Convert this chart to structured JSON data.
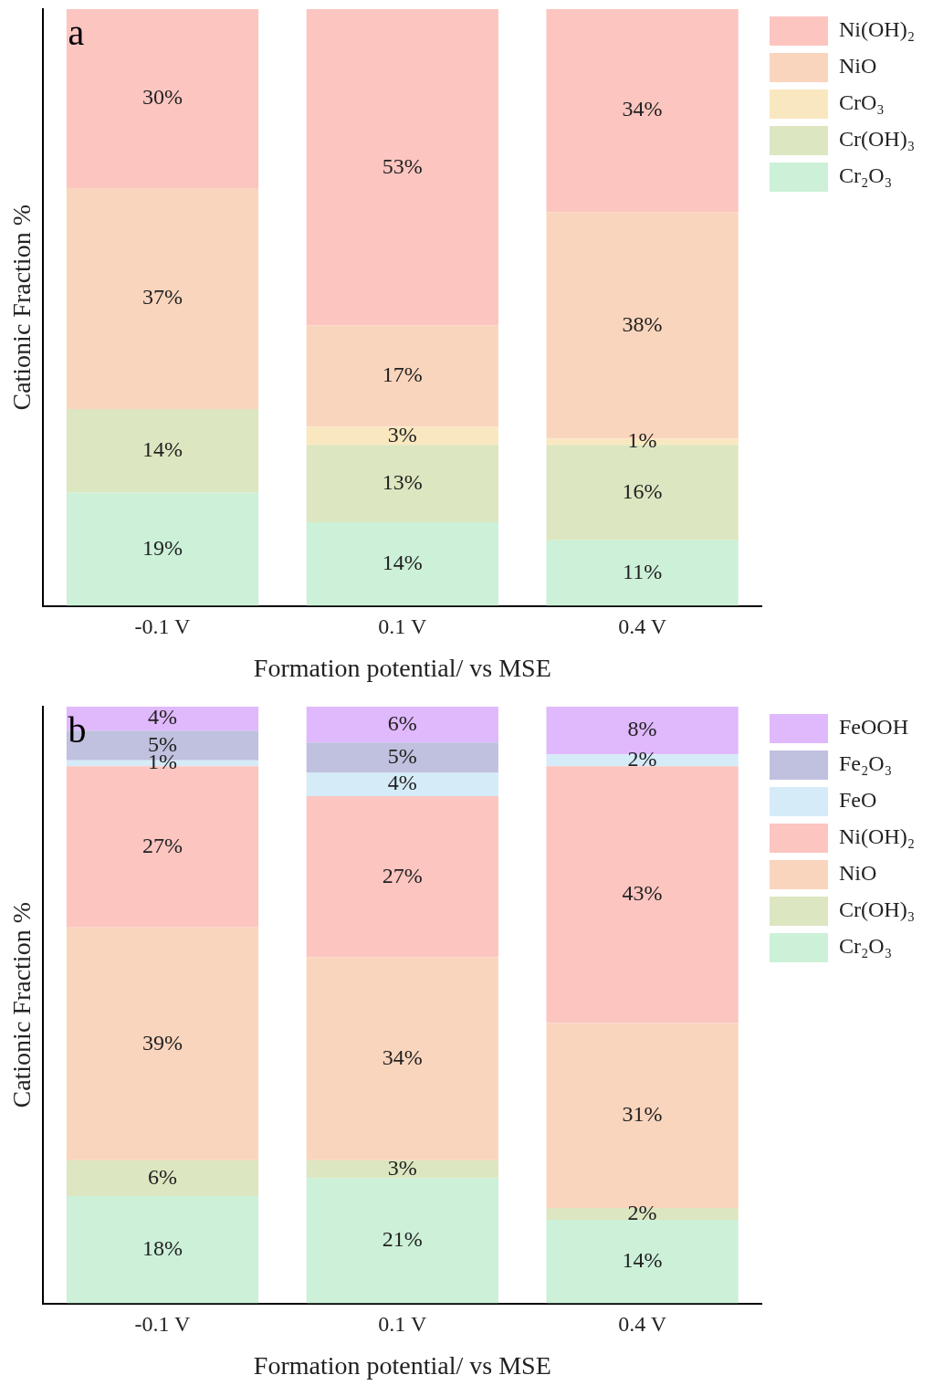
{
  "chart_data": [
    {
      "type": "bar",
      "stacked": true,
      "categories": [
        "-0.1 V",
        "0.1 V",
        "0.4 V"
      ],
      "xlabel": "Formation potential/ vs MSE",
      "ylabel": "Cationic Fraction %",
      "ylim": [
        0,
        100
      ],
      "tick_labels": "x",
      "legend": "top right",
      "annotations": [
        "a"
      ],
      "series": [
        {
          "name": "Cr₂O₃",
          "color": "#ccf0d8",
          "values": [
            19,
            14,
            11
          ],
          "value_labels": [
            "19%",
            "14%",
            "11%"
          ]
        },
        {
          "name": "Cr(OH)₃",
          "color": "#dce6c0",
          "values": [
            14,
            13,
            16
          ],
          "value_labels": [
            "14%",
            "13%",
            "16%"
          ]
        },
        {
          "name": "CrO₃",
          "color": "#f9e8bf",
          "values": [
            0,
            3,
            1
          ],
          "value_labels": [
            null,
            "3%",
            "1%"
          ]
        },
        {
          "name": "NiO",
          "color": "#fad5bd",
          "values": [
            37,
            17,
            38
          ],
          "value_labels": [
            "37%",
            "17%",
            "38%"
          ]
        },
        {
          "name": "Ni(OH)₂",
          "color": "#fcc5c0",
          "values": [
            30,
            53,
            34
          ],
          "value_labels": [
            "30%",
            "53%",
            "34%"
          ]
        }
      ]
    },
    {
      "type": "bar",
      "stacked": true,
      "categories": [
        "-0.1 V",
        "0.1 V",
        "0.4 V"
      ],
      "xlabel": "Formation potential/ vs MSE",
      "ylabel": "Cationic Fraction %",
      "ylim": [
        0,
        100
      ],
      "tick_labels": "x",
      "legend": "top right",
      "annotations": [
        "b"
      ],
      "series": [
        {
          "name": "Cr₂O₃",
          "color": "#ccf0d8",
          "values": [
            18,
            21,
            14
          ],
          "value_labels": [
            "18%",
            "21%",
            "14%"
          ]
        },
        {
          "name": "Cr(OH)₃",
          "color": "#dce6c0",
          "values": [
            6,
            3,
            2
          ],
          "value_labels": [
            "6%",
            "3%",
            "2%"
          ]
        },
        {
          "name": "NiO",
          "color": "#fad5bd",
          "values": [
            39,
            34,
            31
          ],
          "value_labels": [
            "39%",
            "34%",
            "31%"
          ]
        },
        {
          "name": "Ni(OH)₂",
          "color": "#fcc5c0",
          "values": [
            27,
            27,
            43
          ],
          "value_labels": [
            "27%",
            "27%",
            "43%"
          ]
        },
        {
          "name": "FeO",
          "color": "#d5ebf8",
          "values": [
            1,
            4,
            2
          ],
          "value_labels": [
            "1%",
            "4%",
            "2%"
          ]
        },
        {
          "name": "Fe₂O₃",
          "color": "#c0c0df",
          "values": [
            5,
            5,
            0
          ],
          "value_labels": [
            "5%",
            "5%",
            null
          ]
        },
        {
          "name": "FeOOH",
          "color": "#e0b8fc",
          "values": [
            4,
            6,
            8
          ],
          "value_labels": [
            "4%",
            "6%",
            "8%"
          ]
        }
      ]
    }
  ]
}
